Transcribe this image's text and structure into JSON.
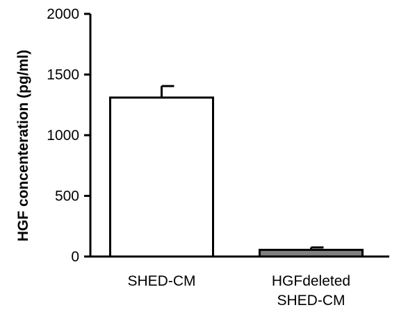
{
  "chart_data": {
    "type": "bar",
    "title": "",
    "xlabel": "",
    "ylabel": "HGF concenteration (pg/ml)",
    "ylim": [
      0,
      2000
    ],
    "yticks": [
      0,
      500,
      1000,
      1500,
      2000
    ],
    "ytick_labels": [
      "0",
      "500",
      "1000",
      "1500",
      "2000"
    ],
    "grid": false,
    "legend": "none",
    "categories": [
      [
        "SHED-CM"
      ],
      [
        "HGFdeleted",
        "SHED-CM"
      ]
    ],
    "values": [
      1310,
      55
    ],
    "errors": [
      95,
      20
    ],
    "bar_fill_colors": [
      "#ffffff",
      "#808080"
    ],
    "bar_stroke_color": "#000000"
  }
}
